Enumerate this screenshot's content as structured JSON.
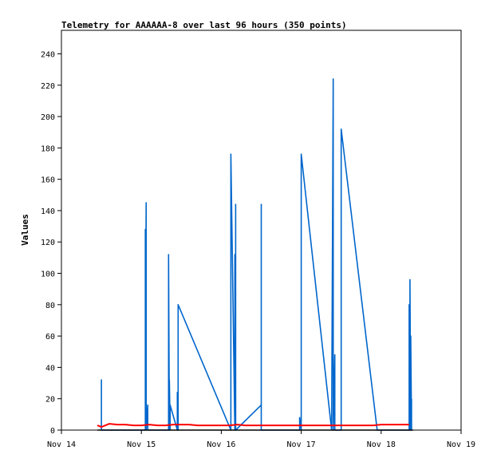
{
  "chart_data": {
    "type": "line",
    "title": "Telemetry for AAAAAA-8 over last 96 hours (350 points)",
    "xlabel": "",
    "ylabel": "Values",
    "xlim": [
      "Nov 14",
      "Nov 19"
    ],
    "ylim": [
      0,
      255
    ],
    "x_ticks": [
      "Nov 14",
      "Nov 15",
      "Nov 16",
      "Nov 17",
      "Nov 18",
      "Nov 19"
    ],
    "y_ticks": [
      0,
      20,
      40,
      60,
      80,
      100,
      120,
      140,
      160,
      180,
      200,
      220,
      240
    ],
    "grid": false,
    "legend": "none",
    "series": [
      {
        "color": "#0066cc",
        "x": [
          14.5,
          14.5,
          14.5,
          15.05,
          15.05,
          15.05,
          15.06,
          15.06,
          15.08,
          15.08,
          15.34,
          15.34,
          15.35,
          15.35,
          15.36,
          15.36,
          15.45,
          15.45,
          15.46,
          15.46,
          16.12,
          16.12,
          16.17,
          16.17,
          16.18,
          16.18,
          16.18,
          16.5,
          16.5,
          16.5,
          16.98,
          16.98,
          17.0,
          17.0,
          17.38,
          17.38,
          17.4,
          17.4,
          17.42,
          17.42,
          17.5,
          17.5,
          17.95,
          17.95,
          18.35,
          18.35,
          18.36,
          18.36,
          18.37,
          18.37,
          18.38,
          18.38
        ],
        "y": [
          0,
          32,
          0,
          0,
          128,
          0,
          145,
          0,
          16,
          0,
          0,
          112,
          0,
          32,
          0,
          16,
          0,
          24,
          0,
          80,
          0,
          176,
          0,
          112,
          0,
          144,
          0,
          16,
          144,
          0,
          0,
          8,
          0,
          176,
          0,
          0,
          224,
          0,
          48,
          0,
          0,
          192,
          0,
          0,
          0,
          80,
          0,
          96,
          0,
          60,
          0,
          20
        ]
      },
      {
        "color": "#ff0000",
        "x": [
          14.45,
          14.5,
          14.55,
          14.6,
          14.7,
          14.8,
          14.9,
          15.0,
          15.1,
          15.2,
          15.3,
          15.4,
          15.5,
          15.6,
          15.7,
          15.8,
          15.9,
          16.0,
          16.1,
          16.2,
          16.3,
          16.4,
          16.5,
          16.6,
          16.7,
          16.8,
          16.9,
          17.0,
          17.1,
          17.2,
          17.3,
          17.4,
          17.5,
          17.6,
          17.7,
          17.8,
          17.9,
          18.0,
          18.1,
          18.2,
          18.3,
          18.35
        ],
        "y": [
          3,
          2,
          3,
          4,
          3.5,
          3.5,
          3,
          3,
          3.5,
          3,
          3,
          3.5,
          3.5,
          3.5,
          3,
          3,
          3,
          3,
          3,
          3.5,
          3,
          3,
          3,
          3,
          3,
          3,
          3,
          3,
          3,
          3,
          3,
          3,
          3,
          3,
          3,
          3,
          3,
          3.5,
          3.5,
          3.5,
          3.5,
          3.5
        ]
      },
      {
        "color": "#000000",
        "x": [
          14.45,
          18.4
        ],
        "y": [
          0,
          0
        ]
      }
    ]
  }
}
